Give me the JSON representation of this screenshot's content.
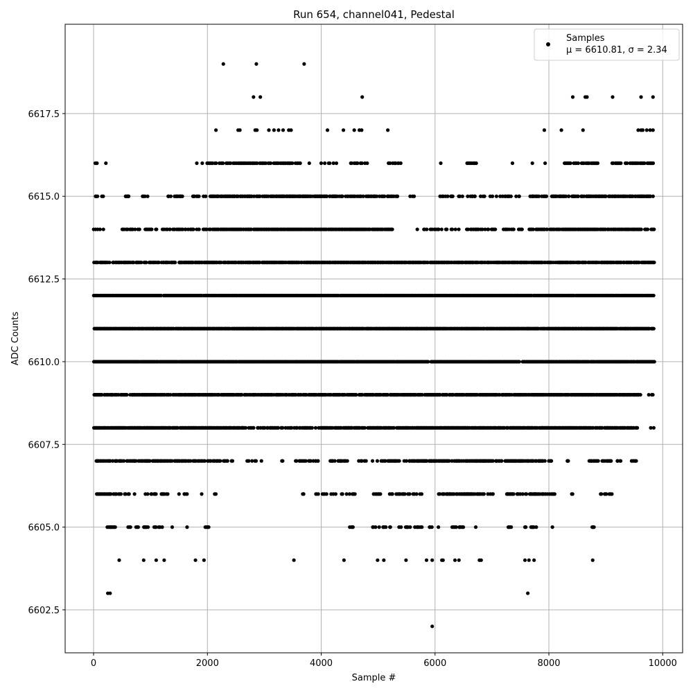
{
  "chart_data": {
    "type": "scatter",
    "title": "Run 654, channel041, Pedestal",
    "xlabel": "Sample #",
    "ylabel": "ADC Counts",
    "xlim": [
      -500,
      10350
    ],
    "ylim": [
      6601.2,
      6620.2
    ],
    "xticks": [
      0,
      2000,
      4000,
      6000,
      8000,
      10000
    ],
    "xtick_labels": [
      "0",
      "2000",
      "4000",
      "6000",
      "8000",
      "10000"
    ],
    "yticks": [
      6602.5,
      6605.0,
      6607.5,
      6610.0,
      6612.5,
      6615.0,
      6617.5
    ],
    "ytick_labels": [
      "6602.5",
      "6605.0",
      "6607.5",
      "6610.0",
      "6612.5",
      "6615.0",
      "6617.5"
    ],
    "grid": true,
    "legend": {
      "placement": "top-right",
      "label": "Samples",
      "stats": "μ = 6610.81, σ = 2.34"
    },
    "marker_color": "#000000",
    "n_samples": 9850,
    "rare_points": [
      [
        2280,
        6619
      ],
      [
        2860,
        6619
      ],
      [
        3700,
        6619
      ],
      [
        2810,
        6618
      ],
      [
        2930,
        6618
      ],
      [
        4720,
        6618
      ],
      [
        8420,
        6618
      ],
      [
        8640,
        6618
      ],
      [
        8670,
        6618
      ],
      [
        9120,
        6618
      ],
      [
        9620,
        6618
      ],
      [
        9830,
        6618
      ],
      [
        2150,
        6617
      ],
      [
        2540,
        6617
      ],
      [
        2570,
        6617
      ],
      [
        2840,
        6617
      ],
      [
        2870,
        6617
      ],
      [
        3080,
        6617
      ],
      [
        3170,
        6617
      ],
      [
        3250,
        6617
      ],
      [
        3330,
        6617
      ],
      [
        3430,
        6617
      ],
      [
        3470,
        6617
      ],
      [
        4110,
        6617
      ],
      [
        4390,
        6617
      ],
      [
        4580,
        6617
      ],
      [
        4670,
        6617
      ],
      [
        4710,
        6617
      ],
      [
        5170,
        6617
      ],
      [
        7920,
        6617
      ],
      [
        8220,
        6617
      ],
      [
        8600,
        6617
      ],
      [
        9570,
        6617
      ],
      [
        9620,
        6617
      ],
      [
        9650,
        6617
      ],
      [
        9720,
        6617
      ],
      [
        9780,
        6617
      ],
      [
        9830,
        6617
      ],
      [
        250,
        6603
      ],
      [
        290,
        6603
      ],
      [
        7630,
        6603
      ],
      [
        5950,
        6602
      ],
      [
        450,
        6604
      ],
      [
        880,
        6604
      ],
      [
        1100,
        6604
      ],
      [
        1240,
        6604
      ],
      [
        1790,
        6604
      ],
      [
        1940,
        6604
      ],
      [
        3520,
        6604
      ],
      [
        4400,
        6604
      ],
      [
        4990,
        6604
      ],
      [
        5100,
        6604
      ],
      [
        5490,
        6604
      ],
      [
        5850,
        6604
      ],
      [
        5950,
        6604
      ],
      [
        6120,
        6604
      ],
      [
        6140,
        6604
      ],
      [
        6350,
        6604
      ],
      [
        6420,
        6604
      ],
      [
        6780,
        6604
      ],
      [
        6810,
        6604
      ],
      [
        7580,
        6604
      ],
      [
        7650,
        6604
      ],
      [
        7740,
        6604
      ],
      [
        8770,
        6604
      ]
    ],
    "levels": [
      {
        "y": 6605,
        "segments": [
          [
            240,
            400,
            0.55
          ],
          [
            600,
            1300,
            0.35
          ],
          [
            1380,
            1420,
            0.5
          ],
          [
            1620,
            1650,
            0.5
          ],
          [
            1960,
            2020,
            0.6
          ],
          [
            4500,
            4560,
            0.5
          ],
          [
            4870,
            5800,
            0.3
          ],
          [
            5800,
            6050,
            0.35
          ],
          [
            6300,
            6500,
            0.45
          ],
          [
            6700,
            6750,
            0.5
          ],
          [
            7250,
            7350,
            0.5
          ],
          [
            7550,
            7800,
            0.5
          ],
          [
            8020,
            8060,
            0.5
          ],
          [
            8750,
            8800,
            0.7
          ]
        ]
      },
      {
        "y": 6606,
        "segments": [
          [
            50,
            650,
            0.45
          ],
          [
            650,
            1300,
            0.35
          ],
          [
            1500,
            1700,
            0.3
          ],
          [
            1880,
            1920,
            0.5
          ],
          [
            2120,
            2160,
            0.5
          ],
          [
            2350,
            2390,
            0.5
          ],
          [
            3650,
            3700,
            0.5
          ],
          [
            3900,
            4500,
            0.35
          ],
          [
            4540,
            4580,
            0.5
          ],
          [
            4900,
            5050,
            0.5
          ],
          [
            5200,
            5900,
            0.35
          ],
          [
            6000,
            7050,
            0.55
          ],
          [
            7250,
            8100,
            0.6
          ],
          [
            8400,
            8450,
            0.5
          ],
          [
            8900,
            9100,
            0.6
          ]
        ]
      },
      {
        "y": 6607,
        "segments": [
          [
            30,
            2200,
            0.6
          ],
          [
            2200,
            2450,
            0.4
          ],
          [
            2650,
            3000,
            0.2
          ],
          [
            3280,
            3320,
            0.5
          ],
          [
            3500,
            3950,
            0.45
          ],
          [
            4150,
            4450,
            0.5
          ],
          [
            4650,
            5500,
            0.45
          ],
          [
            5500,
            7900,
            0.7
          ],
          [
            7900,
            8050,
            0.5
          ],
          [
            8300,
            8350,
            0.5
          ],
          [
            8700,
            9300,
            0.55
          ],
          [
            9450,
            9550,
            0.4
          ]
        ]
      },
      {
        "y": 6608,
        "segments": [
          [
            0,
            2600,
            0.85
          ],
          [
            2600,
            3950,
            0.5
          ],
          [
            3950,
            4700,
            0.7
          ],
          [
            4700,
            8400,
            0.85
          ],
          [
            8400,
            9550,
            0.75
          ],
          [
            9780,
            9840,
            0.5
          ]
        ]
      },
      {
        "y": 6609,
        "segments": [
          [
            0,
            4800,
            0.8
          ],
          [
            4800,
            9600,
            0.9
          ],
          [
            9680,
            9840,
            0.5
          ]
        ]
      },
      {
        "y": 6610,
        "segments": [
          [
            0,
            9850,
            0.95
          ]
        ]
      },
      {
        "y": 6611,
        "segments": [
          [
            0,
            9850,
            0.95
          ]
        ]
      },
      {
        "y": 6612,
        "segments": [
          [
            0,
            9850,
            0.95
          ]
        ]
      },
      {
        "y": 6613,
        "segments": [
          [
            0,
            250,
            0.8
          ],
          [
            250,
            350,
            0.3
          ],
          [
            350,
            1500,
            0.65
          ],
          [
            1500,
            5800,
            0.9
          ],
          [
            5800,
            9850,
            0.85
          ]
        ]
      },
      {
        "y": 6614,
        "segments": [
          [
            0,
            200,
            0.5
          ],
          [
            500,
            1100,
            0.45
          ],
          [
            1200,
            2050,
            0.5
          ],
          [
            2050,
            5250,
            0.85
          ],
          [
            5650,
            5690,
            0.5
          ],
          [
            5800,
            7050,
            0.4
          ],
          [
            7200,
            7550,
            0.5
          ],
          [
            7650,
            9850,
            0.8
          ]
        ]
      },
      {
        "y": 6615,
        "segments": [
          [
            0,
            200,
            0.35
          ],
          [
            550,
            620,
            0.6
          ],
          [
            850,
            960,
            0.5
          ],
          [
            1300,
            1550,
            0.5
          ],
          [
            1700,
            1980,
            0.35
          ],
          [
            2050,
            4000,
            0.75
          ],
          [
            4000,
            5350,
            0.55
          ],
          [
            5550,
            5650,
            0.35
          ],
          [
            6050,
            6350,
            0.3
          ],
          [
            6400,
            7500,
            0.35
          ],
          [
            7650,
            7950,
            0.5
          ],
          [
            8050,
            9850,
            0.7
          ]
        ]
      },
      {
        "y": 6616,
        "segments": [
          [
            0,
            60,
            0.5
          ],
          [
            200,
            230,
            0.5
          ],
          [
            1700,
            1950,
            0.15
          ],
          [
            1980,
            2600,
            0.5
          ],
          [
            2600,
            3650,
            0.6
          ],
          [
            3780,
            3800,
            0.5
          ],
          [
            3950,
            4300,
            0.4
          ],
          [
            4500,
            4800,
            0.4
          ],
          [
            5150,
            5400,
            0.4
          ],
          [
            6090,
            6110,
            0.5
          ],
          [
            6550,
            6760,
            0.4
          ],
          [
            7350,
            7370,
            0.5
          ],
          [
            7700,
            7720,
            0.5
          ],
          [
            7920,
            7980,
            0.5
          ],
          [
            8250,
            8850,
            0.5
          ],
          [
            9100,
            9850,
            0.65
          ]
        ]
      }
    ]
  }
}
